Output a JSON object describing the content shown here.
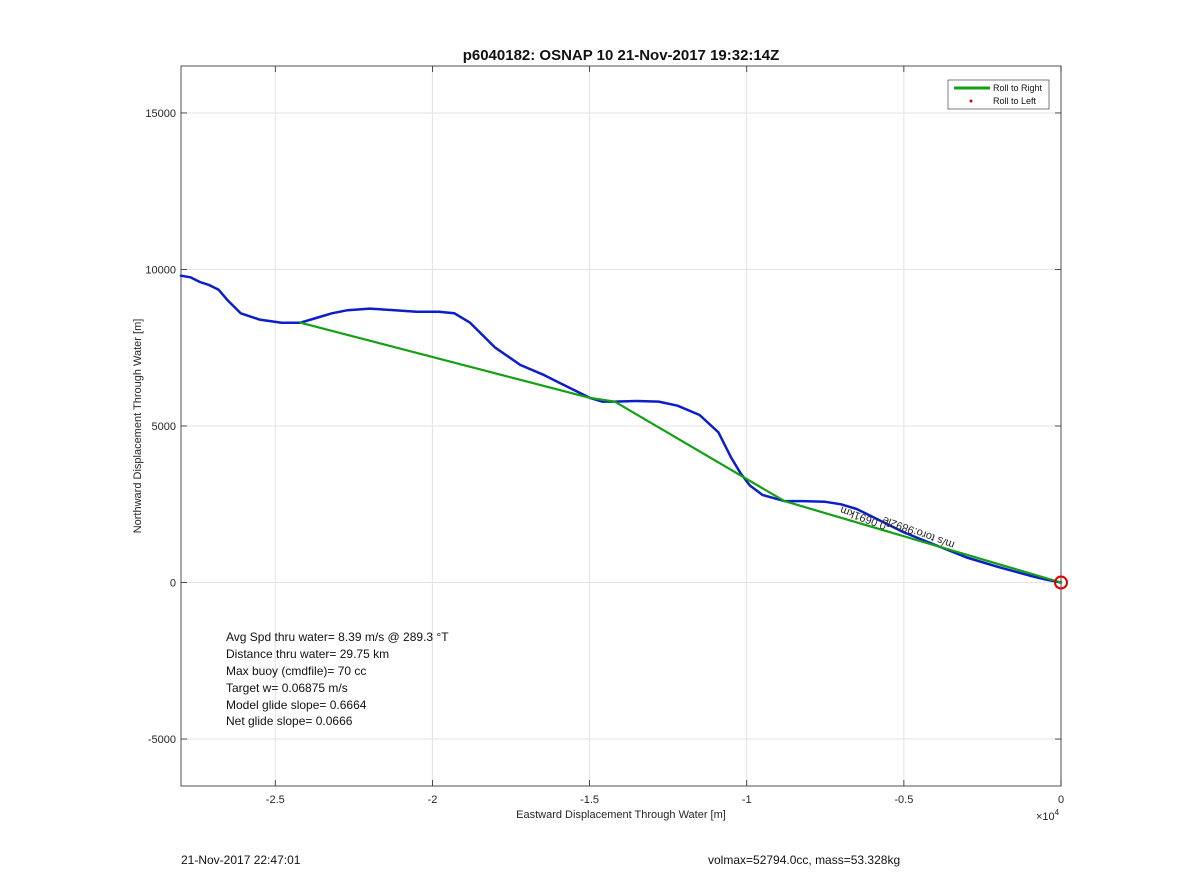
{
  "chart_data": {
    "type": "line",
    "title": "p6040182: OSNAP 10 21-Nov-2017 19:32:14Z",
    "xlabel": "Eastward Displacement Through Water [m]",
    "ylabel": "Northward Displacement Through Water [m]",
    "x_exponent_label": "×10",
    "x_exponent_power": "4",
    "xlim": [
      -2.8,
      0
    ],
    "ylim": [
      -6500,
      16500
    ],
    "xticks": [
      -2.5,
      -2,
      -1.5,
      -1,
      -0.5,
      0
    ],
    "xtick_labels": [
      "-2.5",
      "-2",
      "-1.5",
      "-1",
      "-0.5",
      "0"
    ],
    "yticks": [
      -5000,
      0,
      5000,
      10000,
      15000
    ],
    "ytick_labels": [
      "-5000",
      "0",
      "5000",
      "10000",
      "15000"
    ],
    "grid": true,
    "legend": {
      "placement": "top-right",
      "entries": [
        {
          "name": "Roll to Right",
          "color": "#13a013",
          "style": "line"
        },
        {
          "name": "Roll to Left",
          "color": "#e00000",
          "style": "dot"
        }
      ]
    },
    "series": [
      {
        "color": "#0b1fc8",
        "x": [
          -2.8,
          -2.77,
          -2.74,
          -2.71,
          -2.68,
          -2.65,
          -2.61,
          -2.55,
          -2.48,
          -2.42,
          -2.37,
          -2.32,
          -2.27,
          -2.2,
          -2.12,
          -2.05,
          -1.98,
          -1.93,
          -1.88,
          -1.8,
          -1.72,
          -1.65,
          -1.58,
          -1.5,
          -1.46,
          -1.42,
          -1.35,
          -1.28,
          -1.22,
          -1.15,
          -1.09,
          -1.05,
          -1.02,
          -0.99,
          -0.95,
          -0.88,
          -0.82,
          -0.75,
          -0.7,
          -0.65,
          -0.6,
          -0.5,
          -0.4,
          -0.3,
          -0.2,
          -0.1,
          -0.05,
          0
        ],
        "y": [
          9800,
          9750,
          9600,
          9500,
          9350,
          9000,
          8600,
          8400,
          8300,
          8300,
          8450,
          8600,
          8700,
          8750,
          8700,
          8650,
          8650,
          8600,
          8300,
          7500,
          6950,
          6650,
          6300,
          5900,
          5780,
          5780,
          5800,
          5780,
          5650,
          5350,
          4800,
          4000,
          3500,
          3100,
          2800,
          2600,
          2600,
          2580,
          2500,
          2350,
          2100,
          1600,
          1200,
          800,
          500,
          220,
          100,
          0
        ]
      },
      {
        "name": "Roll to Right",
        "color": "#13a013",
        "x": [
          -2.42,
          -1.5,
          -1.42,
          -0.88,
          0
        ],
        "y": [
          8300,
          5900,
          5780,
          2600,
          0
        ]
      }
    ],
    "annotations": [
      {
        "text": "-0.0691km",
        "x": -0.62,
        "y": 2150,
        "rotation": 200
      },
      {
        "text": "m/s toro:9892ie",
        "x": -0.45,
        "y": 1700,
        "rotation": 200
      }
    ],
    "end_marker": {
      "x": 0,
      "y": 0,
      "color": "#e00000"
    }
  },
  "stats": {
    "line1": "Avg Spd thru water=  8.39 m/s @ 289.3 °T",
    "line2": "Distance thru water= 29.75 km",
    "line3": "Max buoy (cmdfile)= 70 cc",
    "line4": "Target w= 0.06875 m/s",
    "line5": "Model glide slope= 0.6664",
    "line6": "Net glide slope= 0.0666"
  },
  "footer": {
    "left": "21-Nov-2017 22:47:01",
    "right": "volmax=52794.0cc, mass=53.328kg"
  }
}
